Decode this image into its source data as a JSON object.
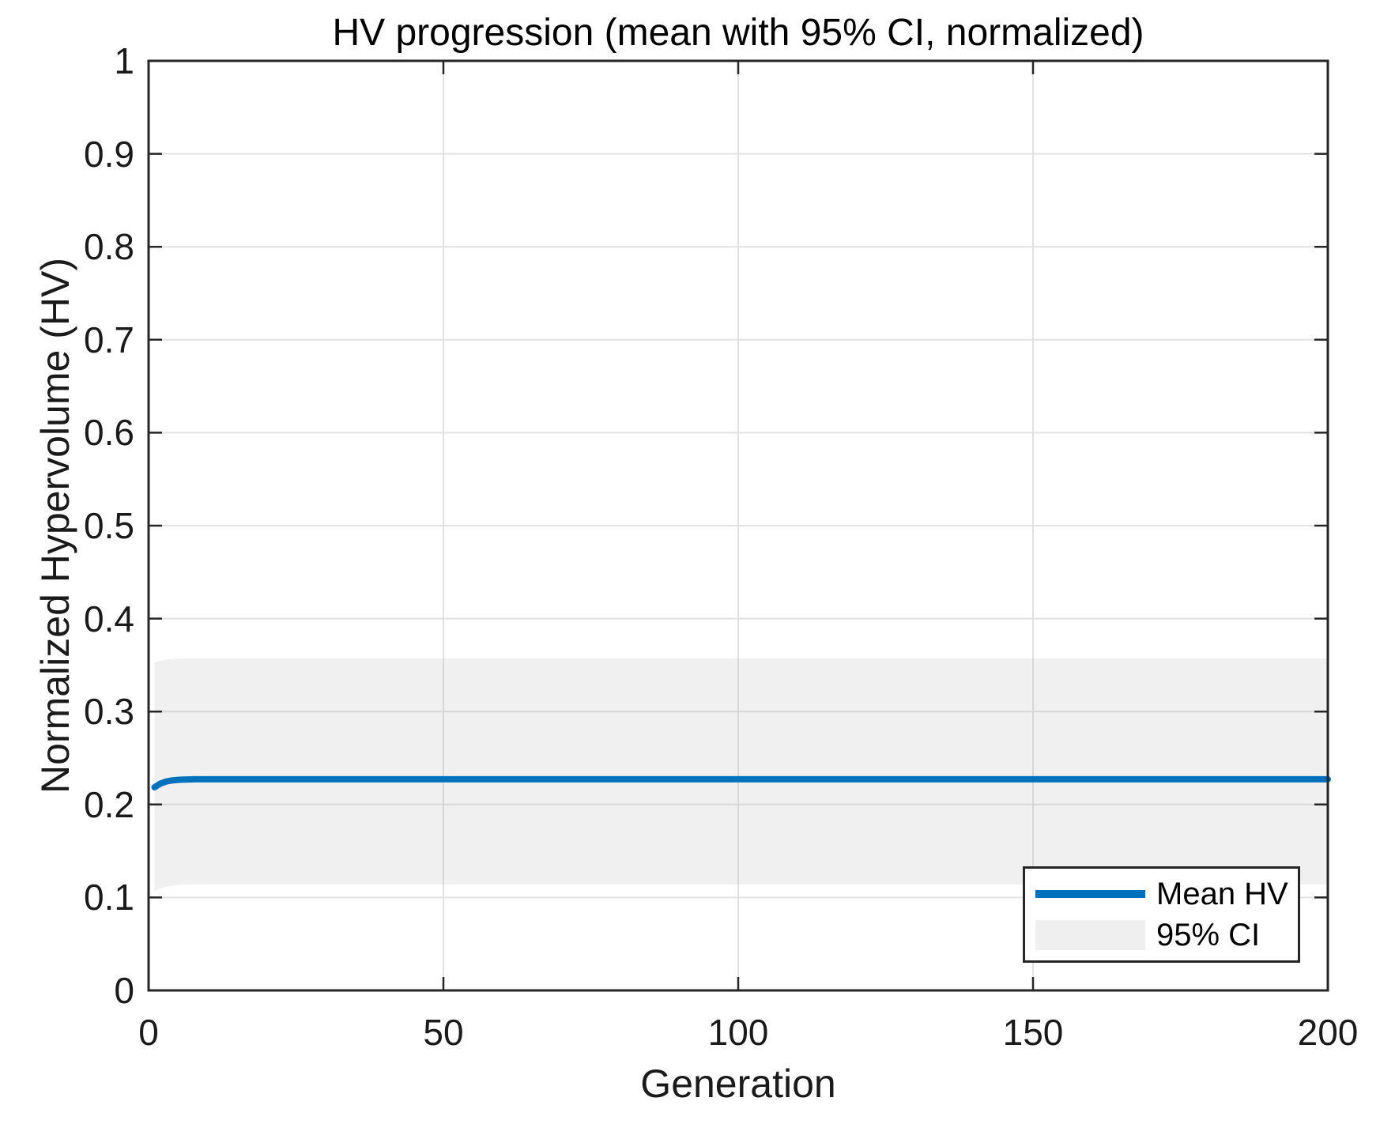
{
  "colors": {
    "mean_line": "#0072BD",
    "ci_band_legend": "#EFEFEF",
    "ci_band_overlay": "rgba(150,150,150,0.14)",
    "grid": "#E2E2E2",
    "axis": "#262626"
  },
  "chart_data": {
    "type": "line",
    "title": "HV progression (mean with 95% CI, normalized)",
    "xlabel": "Generation",
    "ylabel": "Normalized Hypervolume (HV)",
    "xlim": [
      0,
      200
    ],
    "ylim": [
      0,
      1
    ],
    "grid": true,
    "box": true,
    "xticks": {
      "values": [
        0,
        50,
        100,
        150,
        200
      ],
      "labels": [
        "0",
        "50",
        "100",
        "150",
        "200"
      ]
    },
    "yticks": {
      "values": [
        0,
        0.1,
        0.2,
        0.3,
        0.4,
        0.5,
        0.6,
        0.7,
        0.8,
        0.9,
        1
      ],
      "labels": [
        "0",
        "0.1",
        "0.2",
        "0.3",
        "0.4",
        "0.5",
        "0.6",
        "0.7",
        "0.8",
        "0.9",
        "1"
      ]
    },
    "legend": {
      "position": "southeast",
      "entries": [
        {
          "label": "Mean HV",
          "type": "line"
        },
        {
          "label": "95% CI",
          "type": "patch"
        }
      ]
    },
    "series": [
      {
        "name": "Mean HV",
        "type": "line",
        "x": [
          1,
          2,
          3,
          4,
          5,
          6,
          8,
          10,
          15,
          20,
          30,
          50,
          75,
          100,
          125,
          150,
          175,
          200
        ],
        "y": [
          0.2185,
          0.2225,
          0.2248,
          0.2259,
          0.2265,
          0.2268,
          0.2271,
          0.2272,
          0.2272,
          0.2272,
          0.2272,
          0.2272,
          0.2272,
          0.2272,
          0.2272,
          0.2272,
          0.2272,
          0.2272
        ]
      },
      {
        "name": "95% CI",
        "type": "band",
        "x": [
          1,
          2,
          3,
          4,
          5,
          6,
          8,
          10,
          15,
          20,
          30,
          50,
          75,
          100,
          125,
          150,
          175,
          200
        ],
        "upper": [
          0.3525,
          0.3545,
          0.3558,
          0.3564,
          0.3568,
          0.357,
          0.3572,
          0.3573,
          0.3573,
          0.3573,
          0.3573,
          0.3573,
          0.3573,
          0.3573,
          0.3573,
          0.3573,
          0.3573,
          0.3573
        ],
        "lower": [
          0.1062,
          0.1095,
          0.1116,
          0.1127,
          0.1133,
          0.1136,
          0.1139,
          0.1141,
          0.1141,
          0.1141,
          0.1141,
          0.1141,
          0.1141,
          0.1141,
          0.1141,
          0.1141,
          0.1141,
          0.1141
        ]
      }
    ]
  }
}
